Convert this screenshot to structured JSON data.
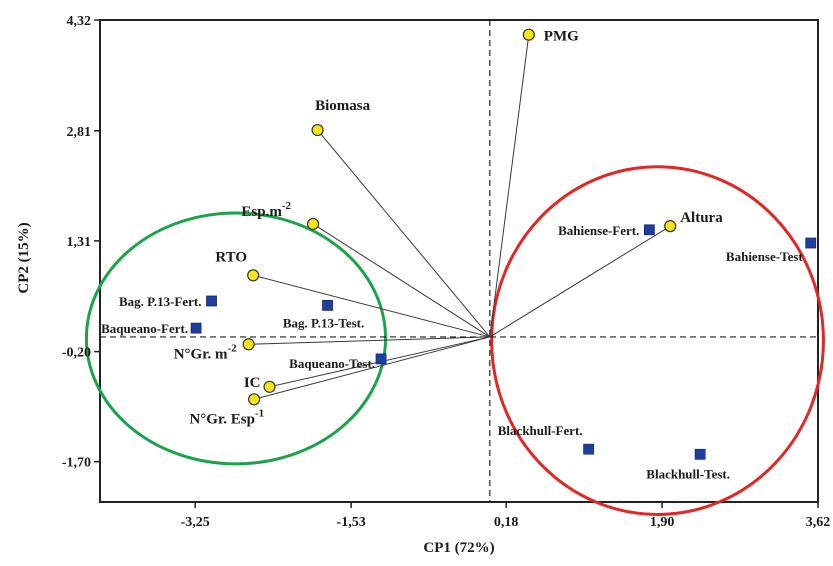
{
  "chart_data": {
    "type": "scatter",
    "subtype": "biplot",
    "title": "",
    "xlabel": "CP1 (72%)",
    "ylabel": "CP2 (15%)",
    "xlim": [
      -4.3,
      3.62
    ],
    "ylim": [
      -2.25,
      4.32
    ],
    "x_ticks": [
      {
        "value": -3.25,
        "label": "-3,25"
      },
      {
        "value": -1.53,
        "label": "-1,53"
      },
      {
        "value": 0.18,
        "label": "0,18"
      },
      {
        "value": 1.9,
        "label": "1,90"
      },
      {
        "value": 3.62,
        "label": "3,62"
      }
    ],
    "y_ticks": [
      {
        "value": 4.32,
        "label": "4,32"
      },
      {
        "value": 2.81,
        "label": "2,81"
      },
      {
        "value": 1.31,
        "label": "1,31"
      },
      {
        "value": -0.2,
        "label": "-0,20"
      },
      {
        "value": -1.7,
        "label": "-1,70"
      }
    ],
    "reference_lines": {
      "x": 0,
      "y": 0,
      "style": "dashed"
    },
    "grid": false,
    "variables": [
      {
        "label": "PMG",
        "base": "PMG",
        "sup": "",
        "x": 0.43,
        "y": 4.12
      },
      {
        "label": "Biomasa",
        "base": "Biomasa",
        "sup": "",
        "x": -1.9,
        "y": 2.82
      },
      {
        "label": "Esp.m-2",
        "base": "Esp.m",
        "sup": "-2",
        "x": -1.95,
        "y": 1.54
      },
      {
        "label": "Altura",
        "base": "Altura",
        "sup": "",
        "x": 1.99,
        "y": 1.51
      },
      {
        "label": "RTO",
        "base": "RTO",
        "sup": "",
        "x": -2.61,
        "y": 0.84
      },
      {
        "label": "N°Gr. m-2",
        "base": "N°Gr. m",
        "sup": "-2",
        "x": -2.66,
        "y": -0.1
      },
      {
        "label": "IC",
        "base": "IC",
        "sup": "",
        "x": -2.43,
        "y": -0.68
      },
      {
        "label": "N°Gr. Esp-1",
        "base": "N°Gr. Esp",
        "sup": "-1",
        "x": -2.6,
        "y": -0.85
      }
    ],
    "observations": [
      {
        "label": "Bahiense-Fert.",
        "x": 1.76,
        "y": 1.46
      },
      {
        "label": "Bahiense-Test",
        "x": 3.54,
        "y": 1.28
      },
      {
        "label": "Bag. P.13-Fert.",
        "x": -3.07,
        "y": 0.49
      },
      {
        "label": "Bag. P.13-Test.",
        "x": -1.79,
        "y": 0.43
      },
      {
        "label": "Baqueano-Fert.",
        "x": -3.24,
        "y": 0.12
      },
      {
        "label": "Baqueano-Test.",
        "x": -1.2,
        "y": -0.3
      },
      {
        "label": "Blackhull-Fert.",
        "x": 1.09,
        "y": -1.53
      },
      {
        "label": "Blackhull-Test.",
        "x": 2.32,
        "y": -1.6
      }
    ],
    "groups": [
      {
        "color": "#1aa34a",
        "cx": -2.8,
        "cy": -0.02,
        "rx": 1.65,
        "ry": 1.71
      },
      {
        "color": "#e32626",
        "cx": 1.85,
        "cy": -0.05,
        "rx": 1.83,
        "ry": 2.37
      }
    ],
    "colors": {
      "variable_marker": "#f5e61b",
      "observation_marker": "#1f3f9e",
      "vector": "#3a3a3a"
    }
  }
}
